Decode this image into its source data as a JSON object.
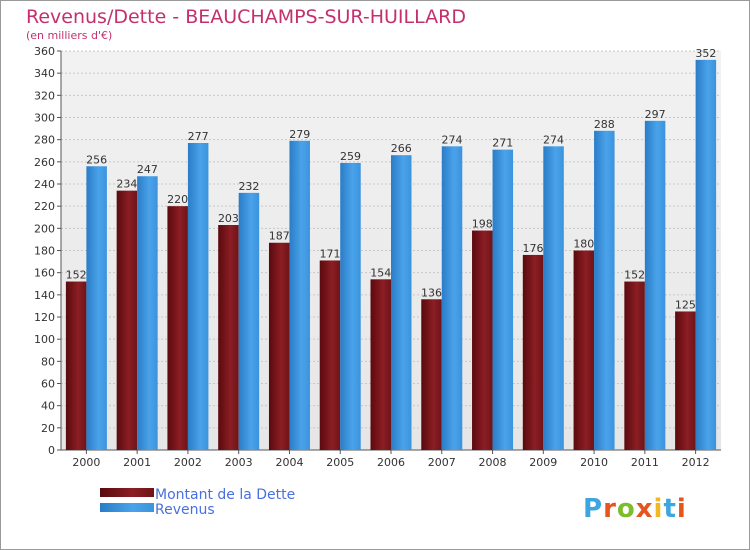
{
  "chart_data": {
    "type": "bar",
    "title": "Revenus/Dette - BEAUCHAMPS-SUR-HUILLARD",
    "subtitle": "(en milliers d'€)",
    "categories": [
      "2000",
      "2001",
      "2002",
      "2003",
      "2004",
      "2005",
      "2006",
      "2007",
      "2008",
      "2009",
      "2010",
      "2011",
      "2012"
    ],
    "series": [
      {
        "name": "Montant de la Dette",
        "color": "#8b1e24",
        "values": [
          152,
          234,
          220,
          203,
          187,
          171,
          154,
          136,
          198,
          176,
          180,
          152,
          125
        ]
      },
      {
        "name": "Revenus",
        "color": "#3b93dd",
        "values": [
          256,
          247,
          277,
          232,
          279,
          259,
          266,
          274,
          271,
          274,
          288,
          297,
          352
        ]
      }
    ],
    "ylim": [
      0,
      360
    ],
    "ytick_step": 20,
    "grid": true,
    "legend": "bottom-left"
  },
  "branding": {
    "logo_text": "Proxiti",
    "logo_colors": [
      "#3ba6e0",
      "#e8541e",
      "#7dbd2b",
      "#e8541e",
      "#f2b81f",
      "#3ba6e0",
      "#e8541e"
    ]
  }
}
